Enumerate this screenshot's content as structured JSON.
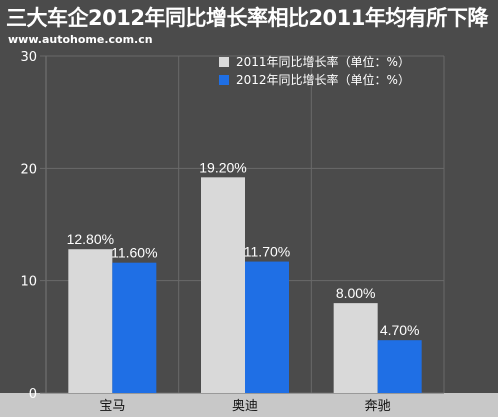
{
  "chart_data": {
    "type": "bar",
    "title": "三大车企2012年同比增长率相比2011年均有所下降",
    "watermark": "www.autohome.com.cn",
    "categories": [
      "宝马",
      "奥迪",
      "奔驰"
    ],
    "series": [
      {
        "name": "2011年同比增长率（单位：%）",
        "values": [
          12.8,
          19.2,
          8.0
        ],
        "labels": [
          "12.80%",
          "19.20%",
          "8.00%"
        ],
        "color": "#d9d9d9"
      },
      {
        "name": "2012年同比增长率（单位：%）",
        "values": [
          11.6,
          11.7,
          4.7
        ],
        "labels": [
          "11.60%",
          "11.70%",
          "4.70%"
        ],
        "color": "#1f6fe5"
      }
    ],
    "ylim": [
      0,
      30
    ],
    "yticks": [
      "0",
      "10",
      "20",
      "30"
    ],
    "grid": true,
    "legend_position": "top-right",
    "xlabel": "",
    "ylabel": ""
  },
  "colors": {
    "background": "#4b4b4b",
    "axis_band": "#c8c8c8",
    "grid": "#6a6a6a"
  }
}
